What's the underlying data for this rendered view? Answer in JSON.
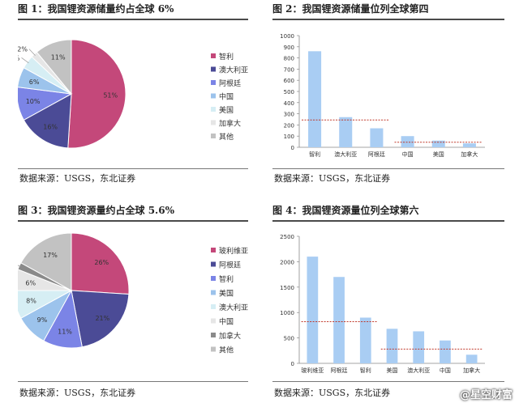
{
  "panels": [
    {
      "title": "图 1：我国锂资源储量约占全球 6%",
      "source": "数据来源：USGS，东北证券"
    },
    {
      "title": "图 2：我国锂资源储量位列全球第四",
      "source": "数据来源：USGS，东北证券"
    },
    {
      "title": "图 3：我国锂资源量约占全球 5.6%",
      "source": "数据来源：USGS，东北证券"
    },
    {
      "title": "图 4：我国锂资源量位列全球第六",
      "source": "数据来源：USGS，东北证券"
    }
  ],
  "watermark": "@星空财富",
  "chart_data": [
    {
      "type": "pie",
      "labels": [
        "智利",
        "澳大利亚",
        "阿根廷",
        "中国",
        "美国",
        "加拿大",
        "其他"
      ],
      "values": [
        51,
        16,
        10,
        6,
        4,
        2,
        11
      ],
      "value_labels": [
        "51%",
        "16%",
        "10%",
        "6%",
        "4%",
        "2%",
        "11%"
      ],
      "colors": [
        "#c4487a",
        "#4b4b96",
        "#7b84e6",
        "#9cc3ec",
        "#d6eef4",
        "#e6e6e6",
        "#c2c2c2"
      ],
      "legend": "right"
    },
    {
      "type": "bar",
      "categories": [
        "智利",
        "澳大利亚",
        "阿根廷",
        "中国",
        "美国",
        "加拿大"
      ],
      "values": [
        860,
        270,
        170,
        100,
        60,
        35
      ],
      "ylim": [
        0,
        1000
      ],
      "yticks": [
        "0",
        "100",
        "200",
        "300",
        "400",
        "500",
        "600",
        "700",
        "800",
        "900",
        "1000"
      ],
      "color": "#a9cdf3",
      "reference_lines": [
        {
          "y": 245,
          "from": 0,
          "to": 2
        },
        {
          "y": 45,
          "from": 3,
          "to": 5
        }
      ]
    },
    {
      "type": "pie",
      "labels": [
        "玻利维亚",
        "阿根廷",
        "智利",
        "美国",
        "澳大利亚",
        "中国",
        "加拿大",
        "其他"
      ],
      "values": [
        26,
        21,
        11,
        9,
        8,
        6,
        2,
        17
      ],
      "value_labels": [
        "26%",
        "21%",
        "11%",
        "9%",
        "8%",
        "6%",
        "2%",
        "17%"
      ],
      "colors": [
        "#c4487a",
        "#4b4b96",
        "#7b84e6",
        "#9cc3ec",
        "#d6eef4",
        "#e6e6e6",
        "#8a8a8a",
        "#c2c2c2"
      ],
      "legend": "right"
    },
    {
      "type": "bar",
      "categories": [
        "玻利维亚",
        "阿根廷",
        "智利",
        "美国",
        "澳大利亚",
        "中国",
        "加拿大"
      ],
      "values": [
        2100,
        1700,
        900,
        680,
        630,
        450,
        170
      ],
      "ylim": [
        0,
        2500
      ],
      "yticks": [
        "0",
        "500",
        "1000",
        "1500",
        "2000",
        "2500"
      ],
      "color": "#a9cdf3",
      "reference_lines": [
        {
          "y": 820,
          "from": 0,
          "to": 2
        },
        {
          "y": 280,
          "from": 3,
          "to": 6
        }
      ]
    }
  ]
}
